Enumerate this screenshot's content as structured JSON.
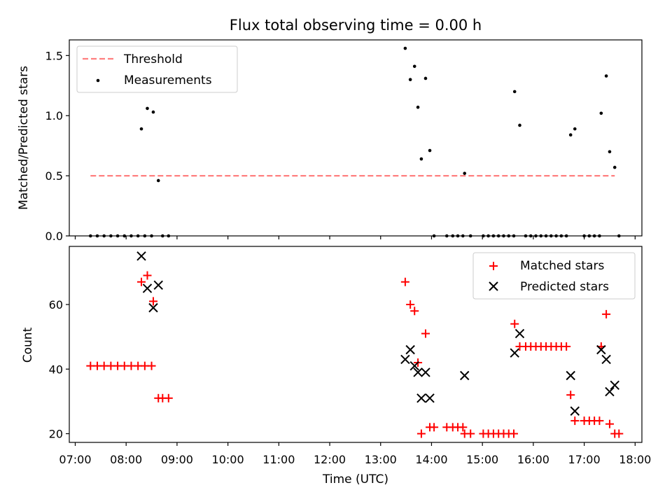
{
  "chart_data": [
    {
      "type": "scatter",
      "title": "Flux total observing time = 0.00 h",
      "xlabel": "",
      "ylabel": "Matched/Predicted stars",
      "xlim": [
        "06:53",
        "18:08"
      ],
      "ylim": [
        0,
        1.63
      ],
      "yticks": [
        "0.0",
        "0.5",
        "1.0",
        "1.5"
      ],
      "legend_position": "upper left",
      "threshold": {
        "name": "Threshold",
        "value": 0.5,
        "x_start": "07:18",
        "x_end": "17:36",
        "color": "#ff7f7f"
      },
      "series": [
        {
          "name": "Measurements",
          "color": "#000000",
          "marker": "dot",
          "points": [
            [
              "07:18",
              0
            ],
            [
              "07:26",
              0
            ],
            [
              "07:34",
              0
            ],
            [
              "07:42",
              0
            ],
            [
              "07:50",
              0
            ],
            [
              "07:58",
              0
            ],
            [
              "08:06",
              0
            ],
            [
              "08:14",
              0
            ],
            [
              "08:22",
              0
            ],
            [
              "08:30",
              0
            ],
            [
              "08:18",
              0.89
            ],
            [
              "08:25",
              1.06
            ],
            [
              "08:32",
              1.03
            ],
            [
              "08:38",
              0.46
            ],
            [
              "08:43",
              0
            ],
            [
              "08:50",
              0
            ],
            [
              "13:29",
              1.56
            ],
            [
              "13:35",
              1.3
            ],
            [
              "13:40",
              1.41
            ],
            [
              "13:44",
              1.07
            ],
            [
              "13:48",
              0.64
            ],
            [
              "13:53",
              1.31
            ],
            [
              "13:58",
              0.71
            ],
            [
              "14:03",
              0
            ],
            [
              "14:18",
              0
            ],
            [
              "14:25",
              0
            ],
            [
              "14:31",
              0
            ],
            [
              "14:37",
              0
            ],
            [
              "14:39",
              0.52
            ],
            [
              "14:46",
              0
            ],
            [
              "15:01",
              0
            ],
            [
              "15:07",
              0
            ],
            [
              "15:13",
              0
            ],
            [
              "15:19",
              0
            ],
            [
              "15:25",
              0
            ],
            [
              "15:31",
              0
            ],
            [
              "15:37",
              0
            ],
            [
              "15:38",
              1.2
            ],
            [
              "15:44",
              0.92
            ],
            [
              "15:51",
              0
            ],
            [
              "15:57",
              0
            ],
            [
              "16:03",
              0
            ],
            [
              "16:09",
              0
            ],
            [
              "16:15",
              0
            ],
            [
              "16:21",
              0
            ],
            [
              "16:27",
              0
            ],
            [
              "16:33",
              0
            ],
            [
              "16:39",
              0
            ],
            [
              "16:44",
              0.84
            ],
            [
              "16:49",
              0.89
            ],
            [
              "17:00",
              0
            ],
            [
              "17:06",
              0
            ],
            [
              "17:12",
              0
            ],
            [
              "17:18",
              0
            ],
            [
              "17:20",
              1.02
            ],
            [
              "17:26",
              1.33
            ],
            [
              "17:30",
              0.7
            ],
            [
              "17:36",
              0.57
            ],
            [
              "17:41",
              0
            ]
          ]
        }
      ]
    },
    {
      "type": "scatter",
      "title": "",
      "xlabel": "Time (UTC)",
      "ylabel": "Count",
      "xlim": [
        "06:53",
        "18:08"
      ],
      "ylim": [
        17.3,
        78
      ],
      "yticks": [
        "20",
        "40",
        "60"
      ],
      "xticks": [
        "07:00",
        "08:00",
        "09:00",
        "10:00",
        "11:00",
        "12:00",
        "13:00",
        "14:00",
        "15:00",
        "16:00",
        "17:00",
        "18:00"
      ],
      "legend_position": "upper right",
      "series": [
        {
          "name": "Matched stars",
          "color": "#ff0000",
          "marker": "plus",
          "points": [
            [
              "07:18",
              41
            ],
            [
              "07:26",
              41
            ],
            [
              "07:34",
              41
            ],
            [
              "07:42",
              41
            ],
            [
              "07:50",
              41
            ],
            [
              "07:58",
              41
            ],
            [
              "08:06",
              41
            ],
            [
              "08:14",
              41
            ],
            [
              "08:22",
              41
            ],
            [
              "08:30",
              41
            ],
            [
              "08:18",
              67
            ],
            [
              "08:25",
              69
            ],
            [
              "08:32",
              61
            ],
            [
              "08:38",
              31
            ],
            [
              "08:43",
              31
            ],
            [
              "08:50",
              31
            ],
            [
              "13:29",
              67
            ],
            [
              "13:35",
              60
            ],
            [
              "13:40",
              58
            ],
            [
              "13:44",
              42
            ],
            [
              "13:48",
              20
            ],
            [
              "13:53",
              51
            ],
            [
              "13:58",
              22
            ],
            [
              "14:03",
              22
            ],
            [
              "14:18",
              22
            ],
            [
              "14:25",
              22
            ],
            [
              "14:31",
              22
            ],
            [
              "14:37",
              22
            ],
            [
              "14:39",
              20
            ],
            [
              "14:46",
              20
            ],
            [
              "15:01",
              20
            ],
            [
              "15:07",
              20
            ],
            [
              "15:13",
              20
            ],
            [
              "15:19",
              20
            ],
            [
              "15:25",
              20
            ],
            [
              "15:31",
              20
            ],
            [
              "15:37",
              20
            ],
            [
              "15:38",
              54
            ],
            [
              "15:44",
              47
            ],
            [
              "15:51",
              47
            ],
            [
              "15:57",
              47
            ],
            [
              "16:03",
              47
            ],
            [
              "16:09",
              47
            ],
            [
              "16:15",
              47
            ],
            [
              "16:21",
              47
            ],
            [
              "16:27",
              47
            ],
            [
              "16:33",
              47
            ],
            [
              "16:39",
              47
            ],
            [
              "16:44",
              32
            ],
            [
              "16:49",
              24
            ],
            [
              "17:00",
              24
            ],
            [
              "17:06",
              24
            ],
            [
              "17:12",
              24
            ],
            [
              "17:18",
              24
            ],
            [
              "17:20",
              47
            ],
            [
              "17:26",
              57
            ],
            [
              "17:30",
              23
            ],
            [
              "17:36",
              20
            ],
            [
              "17:41",
              20
            ]
          ]
        },
        {
          "name": "Predicted stars",
          "color": "#000000",
          "marker": "x",
          "points": [
            [
              "08:18",
              75
            ],
            [
              "08:25",
              65
            ],
            [
              "08:32",
              59
            ],
            [
              "08:38",
              66
            ],
            [
              "13:29",
              43
            ],
            [
              "13:35",
              46
            ],
            [
              "13:40",
              41
            ],
            [
              "13:44",
              39
            ],
            [
              "13:48",
              31
            ],
            [
              "13:53",
              39
            ],
            [
              "13:58",
              31
            ],
            [
              "14:39",
              38
            ],
            [
              "15:38",
              45
            ],
            [
              "15:44",
              51
            ],
            [
              "16:44",
              38
            ],
            [
              "16:49",
              27
            ],
            [
              "17:20",
              46
            ],
            [
              "17:26",
              43
            ],
            [
              "17:30",
              33
            ],
            [
              "17:36",
              35
            ]
          ]
        }
      ]
    }
  ]
}
